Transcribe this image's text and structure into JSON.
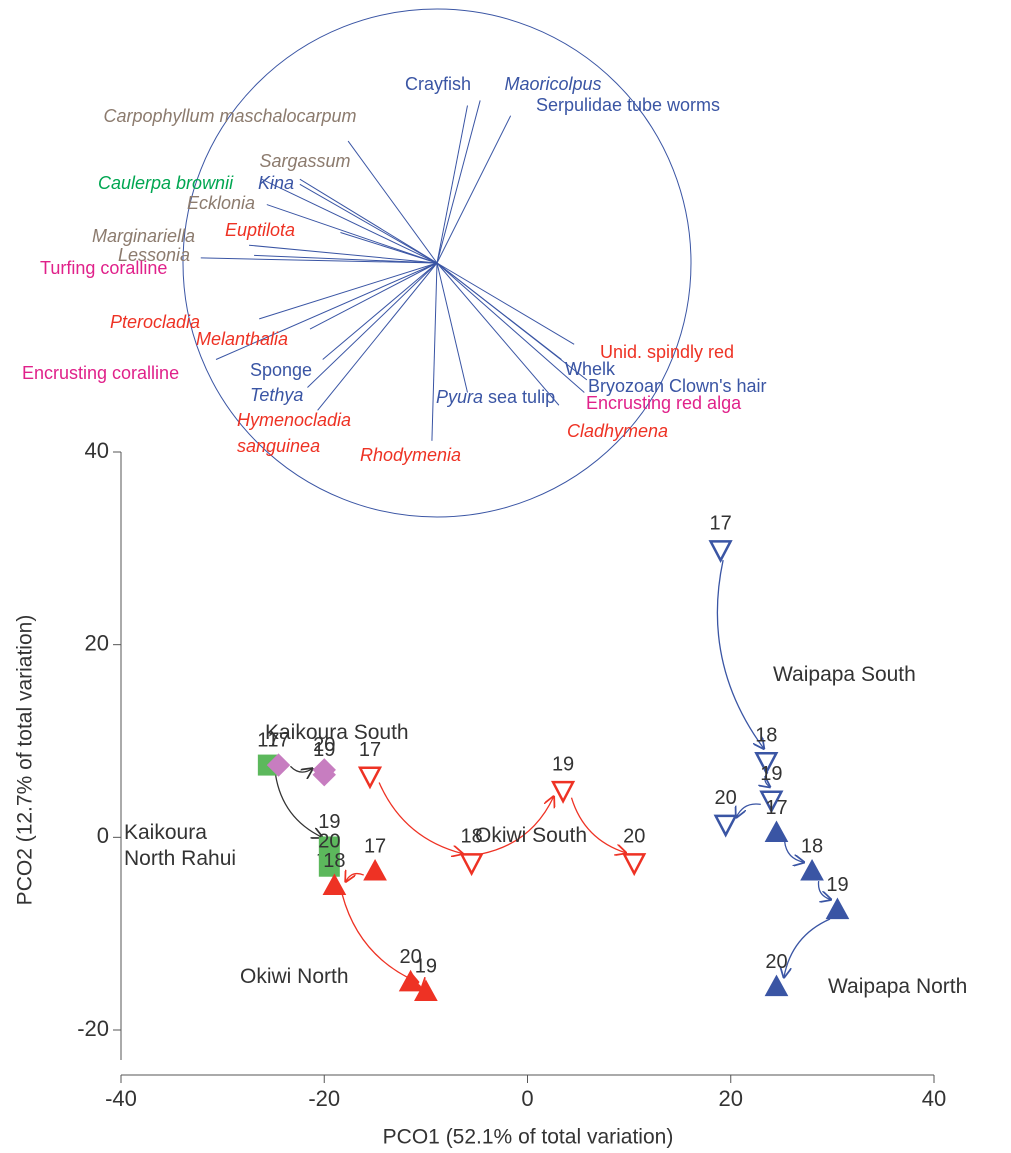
{
  "chart_data": {
    "type": "scatter",
    "xlabel": "PCO1 (52.1% of total variation)",
    "ylabel": "PCO2 (12.7% of total variation)",
    "xlim": [
      -40,
      40
    ],
    "xticks": [
      -40,
      -20,
      0,
      20,
      40
    ],
    "ylim": [
      -20,
      40
    ],
    "yticks": [
      -20,
      0,
      20,
      40
    ],
    "series": [
      {
        "name": "Kaikoura North Rahui",
        "color": "#5cb85c",
        "line_color": "#333333",
        "marker": "square",
        "filled": true,
        "point_labels": [
          "17",
          "19",
          "20"
        ],
        "x": [
          -25.5,
          -19.5,
          -19.5
        ],
        "values": [
          7.5,
          -1,
          -3
        ]
      },
      {
        "name": "Kaikoura South",
        "color": "#c77dc0",
        "line_color": "#333333",
        "marker": "diamond",
        "filled": true,
        "point_labels": [
          "17",
          "20",
          "19"
        ],
        "x": [
          -24.5,
          -20,
          -20
        ],
        "values": [
          7.5,
          7,
          6.5
        ]
      },
      {
        "name": "Okiwi South",
        "color": "#ee3224",
        "line_color": "#ee3224",
        "marker": "triangle-down",
        "filled": false,
        "point_labels": [
          "17",
          "18",
          "19",
          "20"
        ],
        "x": [
          -15.5,
          -5.5,
          3.5,
          10.5
        ],
        "values": [
          6.5,
          -2.5,
          5,
          -2.5
        ]
      },
      {
        "name": "Okiwi North",
        "color": "#ee3224",
        "line_color": "#ee3224",
        "marker": "triangle-up",
        "filled": true,
        "point_labels": [
          "17",
          "18",
          "19",
          "20"
        ],
        "x": [
          -15,
          -19,
          -10,
          -11.5
        ],
        "values": [
          -3.5,
          -5,
          -16,
          -15
        ]
      },
      {
        "name": "Waipapa South",
        "color": "#3a55a4",
        "line_color": "#3a55a4",
        "marker": "triangle-down",
        "filled": false,
        "point_labels": [
          "17",
          "18",
          "19",
          "20"
        ],
        "x": [
          19,
          23.5,
          24,
          19.5
        ],
        "values": [
          30,
          8,
          4,
          1.5
        ]
      },
      {
        "name": "Waipapa North",
        "color": "#3a55a4",
        "line_color": "#3a55a4",
        "marker": "triangle-up",
        "filled": true,
        "point_labels": [
          "17",
          "18",
          "19",
          "20"
        ],
        "x": [
          24.5,
          28,
          30.5,
          24.5
        ],
        "values": [
          0.5,
          -3.5,
          -7.5,
          -15.5
        ]
      }
    ],
    "vectors": [
      {
        "name": "Crayfish",
        "italic": false,
        "color": "#3a55a4",
        "x": 0.12,
        "y": 0.62
      },
      {
        "name": "Maoricolpus",
        "italic": true,
        "color": "#3a55a4",
        "x": 0.17,
        "y": 0.64
      },
      {
        "name": "Serpulidae tube worms",
        "italic": false,
        "color": "#3a55a4",
        "x": 0.29,
        "y": 0.58
      },
      {
        "name": "Carpophyllum maschalocarpum",
        "italic": true,
        "color": "#8c7b6e",
        "x": -0.35,
        "y": 0.48
      },
      {
        "name": "Sargassum",
        "italic": true,
        "color": "#8c7b6e",
        "x": -0.54,
        "y": 0.33
      },
      {
        "name": "Caulerpa brownii",
        "italic": true,
        "color": "#00a651",
        "x": -0.69,
        "y": 0.33
      },
      {
        "name": "Kina",
        "italic": true,
        "color": "#3a55a4",
        "x": -0.54,
        "y": 0.31
      },
      {
        "name": "Ecklonia",
        "italic": true,
        "color": "#8c7b6e",
        "x": -0.67,
        "y": 0.23
      },
      {
        "name": "Euptilota",
        "italic": true,
        "color": "#ee3224",
        "x": -0.38,
        "y": 0.12
      },
      {
        "name": "Marginariella",
        "italic": true,
        "color": "#8c7b6e",
        "x": -0.74,
        "y": 0.07
      },
      {
        "name": "Lessonia",
        "italic": true,
        "color": "#8c7b6e",
        "x": -0.72,
        "y": 0.03
      },
      {
        "name": "Turfing coralline",
        "italic": false,
        "color": "#e0218a",
        "x": -0.93,
        "y": 0.02
      },
      {
        "name": "Pterocladia",
        "italic": true,
        "color": "#ee3224",
        "x": -0.7,
        "y": -0.22
      },
      {
        "name": "Melanthalia",
        "italic": true,
        "color": "#ee3224",
        "x": -0.5,
        "y": -0.26
      },
      {
        "name": "Encrusting coralline",
        "italic": false,
        "color": "#e0218a",
        "x": -0.87,
        "y": -0.38
      },
      {
        "name": "Sponge",
        "italic": false,
        "color": "#3a55a4",
        "x": -0.45,
        "y": -0.38
      },
      {
        "name": "Tethya",
        "italic": true,
        "color": "#3a55a4",
        "x": -0.51,
        "y": -0.49
      },
      {
        "name": "Hymenocladia sanguinea",
        "italic": true,
        "color": "#ee3224",
        "x": -0.47,
        "y": -0.58
      },
      {
        "name": "Rhodymenia",
        "italic": true,
        "color": "#ee3224",
        "x": -0.02,
        "y": -0.7
      },
      {
        "name": "Pyura",
        "suffix": "sea tulip",
        "italic": true,
        "color": "#3a55a4",
        "x": 0.12,
        "y": -0.51
      },
      {
        "name": "Unid. spindly red",
        "italic": false,
        "color": "#ee3224",
        "x": 0.54,
        "y": -0.32
      },
      {
        "name": "Whelk",
        "italic": false,
        "color": "#3a55a4",
        "x": 0.49,
        "y": -0.38
      },
      {
        "name": "Bryozoan Clown's hair",
        "italic": false,
        "color": "#3a55a4",
        "x": 0.59,
        "y": -0.46
      },
      {
        "name": "Encrusting red alga",
        "italic": false,
        "color": "#e0218a",
        "x": 0.58,
        "y": -0.51
      },
      {
        "name": "Cladhymena",
        "italic": true,
        "color": "#ee3224",
        "x": 0.48,
        "y": -0.56
      }
    ]
  }
}
